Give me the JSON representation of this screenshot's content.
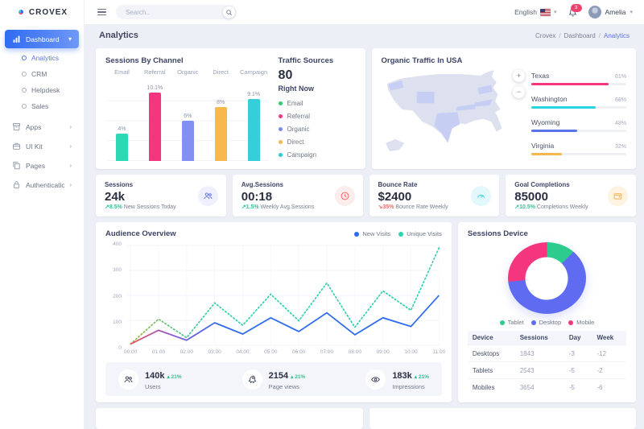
{
  "brand": {
    "name": "CROVEX"
  },
  "topbar": {
    "search_placeholder": "Search..",
    "language": "English",
    "notification_count": "3",
    "user_name": "Amelia"
  },
  "page": {
    "title": "Analytics",
    "breadcrumb": [
      "Crovex",
      "Dashboard",
      "Analytics"
    ]
  },
  "sidebar": {
    "items": [
      {
        "label": "Dashboard",
        "icon": "chart-bar-icon",
        "active": true,
        "expanded": true,
        "children": [
          {
            "label": "Analytics",
            "active": true
          },
          {
            "label": "CRM"
          },
          {
            "label": "Helpdesk"
          },
          {
            "label": "Sales"
          }
        ]
      },
      {
        "label": "Apps",
        "icon": "box-icon"
      },
      {
        "label": "UI Kit",
        "icon": "briefcase-icon"
      },
      {
        "label": "Pages",
        "icon": "copy-icon"
      },
      {
        "label": "Authentication",
        "icon": "lock-icon"
      }
    ]
  },
  "panels": {
    "sessions_by_channel_title": "Sessions By Channel",
    "traffic_sources": {
      "title": "Traffic Sources",
      "value": "80",
      "subtitle": "Right Now"
    },
    "organic_traffic_title": "Organic Traffic In USA",
    "map_zoom": {
      "zoom_in": "+",
      "zoom_out": "−"
    },
    "audience_title": "Audience Overview",
    "device_title": "Sessions Device"
  },
  "stat_cards": [
    {
      "label": "Sessions",
      "value": "24k",
      "delta": "↗8.5%",
      "dir": "up",
      "note": " New Sessions Today",
      "icon": "users-icon"
    },
    {
      "label": "Avg.Sessions",
      "value": "00:18",
      "delta": "↗1.5%",
      "dir": "up",
      "note": " Weekly Avg.Sessions",
      "icon": "clock-icon"
    },
    {
      "label": "Bounce Rate",
      "value": "$2400",
      "delta": "↘35%",
      "dir": "down",
      "note": " Bounce Rate Weekly",
      "icon": "gauge-icon"
    },
    {
      "label": "Goal Completions",
      "value": "85000",
      "delta": "↗10.5%",
      "dir": "up",
      "note": " Completions Weekly",
      "icon": "wallet-icon"
    }
  ],
  "mini_stats": [
    {
      "value": "140k",
      "delta": "▴ 21%",
      "label": "Users",
      "icon": "people-icon"
    },
    {
      "value": "2154",
      "delta": "▴ 21%",
      "label": "Page views",
      "icon": "rocket-icon"
    },
    {
      "value": "183k",
      "delta": "▴ 21%",
      "label": "Impressions",
      "icon": "eye-icon"
    }
  ],
  "chart_data": [
    {
      "id": "sessions_by_channel",
      "type": "bar",
      "title": "Sessions By Channel",
      "categories": [
        "Email",
        "Referral",
        "Organic",
        "Direct",
        "Campaign"
      ],
      "values": [
        4,
        10.1,
        6,
        8,
        9.1
      ],
      "labels": [
        "4%",
        "10.1%",
        "6%",
        "8%",
        "9.1%"
      ],
      "colors": [
        "#2ed8b6",
        "#f5367f",
        "#8290f2",
        "#f8b84e",
        "#35cfd9"
      ],
      "ylim": [
        0,
        12
      ],
      "grid": true,
      "legend": [
        {
          "label": "Email",
          "color": "#2dcc70"
        },
        {
          "label": "Referral",
          "color": "#f5367f"
        },
        {
          "label": "Organic",
          "color": "#7b88f0"
        },
        {
          "label": "Direct",
          "color": "#f7b84b"
        },
        {
          "label": "Campaign",
          "color": "#29cdd8"
        }
      ]
    },
    {
      "id": "organic_traffic_usa",
      "type": "bar",
      "title": "Organic Traffic In USA",
      "categories": [
        "Texas",
        "Washington",
        "Wyoming",
        "Virginia"
      ],
      "values": [
        81,
        68,
        48,
        32
      ],
      "labels": [
        "81%",
        "68%",
        "48%",
        "32%"
      ],
      "colors": [
        "#f5367f",
        "#27d4e0",
        "#5b73e8",
        "#f7b84b"
      ],
      "highlighted_states": [
        "Washington",
        "Wyoming",
        "Texas",
        "Pennsylvania",
        "Kentucky",
        "Virginia"
      ]
    },
    {
      "id": "audience_overview",
      "type": "line",
      "title": "Audience Overview",
      "x": [
        "00:00",
        "01:00",
        "02:00",
        "03:00",
        "04:00",
        "05:00",
        "06:00",
        "07:00",
        "08:00",
        "09:00",
        "10:00",
        "11:00"
      ],
      "series": [
        {
          "name": "New Visits",
          "style": "solid",
          "color": "#2d6bf0",
          "values": [
            5,
            60,
            20,
            90,
            45,
            110,
            55,
            130,
            42,
            110,
            75,
            200
          ]
        },
        {
          "name": "Unique Visits",
          "style": "dotted",
          "color": "#2bd3ae",
          "values": [
            5,
            105,
            30,
            170,
            80,
            205,
            98,
            250,
            72,
            218,
            140,
            390
          ]
        }
      ],
      "ylim": [
        0,
        400
      ],
      "yticks": [
        0,
        100,
        200,
        300,
        400
      ],
      "grid": true,
      "legend_position": "top-right"
    },
    {
      "id": "sessions_device",
      "type": "pie",
      "title": "Sessions Device",
      "slices": [
        {
          "label": "Tablet",
          "pct": 12.5,
          "color": "#2dcc8e"
        },
        {
          "label": "Desktop",
          "pct": 61,
          "color": "#5f6cf2"
        },
        {
          "label": "Mobile",
          "pct": 26.5,
          "color": "#f5367f"
        }
      ]
    },
    {
      "id": "device_table",
      "type": "table",
      "headers": [
        "Device",
        "Sessions",
        "Day",
        "Week"
      ],
      "rows": [
        [
          "Desktops",
          "1843",
          "-3",
          "-12"
        ],
        [
          "Tablets",
          "2543",
          "-5",
          "-2"
        ],
        [
          "Mobiles",
          "3654",
          "-5",
          "-6"
        ]
      ]
    }
  ]
}
